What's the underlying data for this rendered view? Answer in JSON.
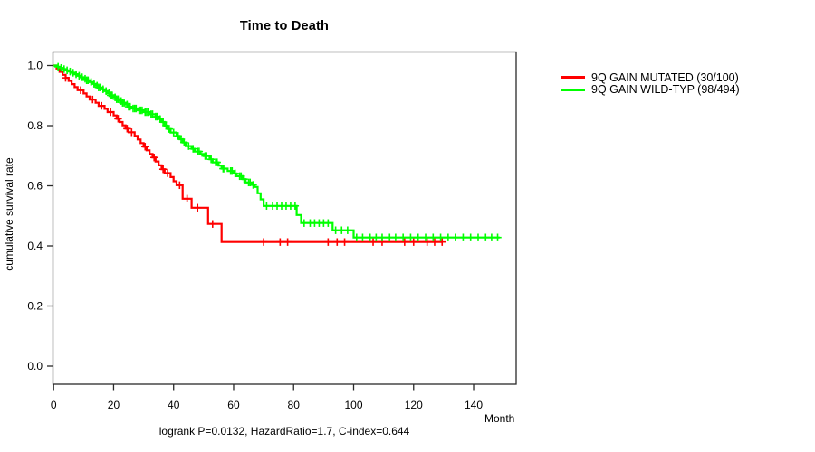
{
  "chart_data": {
    "type": "line",
    "subtype": "kaplan-meier-step-curves",
    "title": "Time to Death",
    "xlabel": "Month",
    "ylabel": "cumulative survival rate",
    "annotation": "logrank P=0.0132, HazardRatio=1.7, C-index=0.644",
    "x_ticks": [
      0,
      20,
      40,
      60,
      80,
      100,
      120,
      140
    ],
    "y_ticks": [
      0.0,
      0.2,
      0.4,
      0.6,
      0.8,
      1.0
    ],
    "xlim": [
      0,
      154
    ],
    "ylim": [
      0,
      1
    ],
    "grid": false,
    "legend_position": "outside-right-top",
    "axis_color": "#2a2a2a",
    "series": [
      {
        "name": "9Q GAIN MUTATED (30/100)",
        "color": "#ff0000",
        "end_month": 129.5,
        "steps": [
          [
            0,
            1.0
          ],
          [
            1,
            0.99
          ],
          [
            2,
            0.979
          ],
          [
            3,
            0.969
          ],
          [
            4,
            0.959
          ],
          [
            5,
            0.949
          ],
          [
            6,
            0.938
          ],
          [
            7,
            0.928
          ],
          [
            8,
            0.918
          ],
          [
            10,
            0.907
          ],
          [
            11,
            0.897
          ],
          [
            12,
            0.887
          ],
          [
            14,
            0.876
          ],
          [
            15,
            0.866
          ],
          [
            17,
            0.856
          ],
          [
            18,
            0.845
          ],
          [
            20,
            0.834
          ],
          [
            21,
            0.823
          ],
          [
            22,
            0.812
          ],
          [
            23,
            0.801
          ],
          [
            24,
            0.79
          ],
          [
            25,
            0.778
          ],
          [
            27,
            0.766
          ],
          [
            28,
            0.754
          ],
          [
            29,
            0.742
          ],
          [
            30,
            0.73
          ],
          [
            31,
            0.718
          ],
          [
            32,
            0.706
          ],
          [
            33,
            0.694
          ],
          [
            34,
            0.681
          ],
          [
            35,
            0.668
          ],
          [
            36,
            0.655
          ],
          [
            37,
            0.642
          ],
          [
            39,
            0.629
          ],
          [
            40,
            0.615
          ],
          [
            41,
            0.602
          ],
          [
            43,
            0.557
          ],
          [
            46,
            0.527
          ],
          [
            51.5,
            0.473
          ],
          [
            56,
            0.413
          ]
        ],
        "censor_months": [
          4,
          9,
          13,
          16,
          19,
          21.5,
          24.5,
          26,
          30.5,
          33.5,
          36.5,
          38,
          42,
          44.5,
          48,
          53,
          70,
          75.5,
          78,
          91.5,
          94.5,
          97,
          106.5,
          109.5,
          117,
          120,
          124.5,
          127,
          129.5
        ]
      },
      {
        "name": "9Q GAIN WILD-TYP (98/494)",
        "color": "#00ff00",
        "end_month": 148.7,
        "steps": [
          [
            0,
            1.0
          ],
          [
            1,
            0.996
          ],
          [
            2,
            0.992
          ],
          [
            3,
            0.988
          ],
          [
            4,
            0.984
          ],
          [
            5,
            0.98
          ],
          [
            6,
            0.976
          ],
          [
            7,
            0.971
          ],
          [
            8,
            0.966
          ],
          [
            9,
            0.961
          ],
          [
            10,
            0.956
          ],
          [
            11,
            0.951
          ],
          [
            12,
            0.945
          ],
          [
            13,
            0.939
          ],
          [
            14,
            0.933
          ],
          [
            15,
            0.927
          ],
          [
            16,
            0.921
          ],
          [
            17,
            0.915
          ],
          [
            18,
            0.908
          ],
          [
            19,
            0.901
          ],
          [
            20,
            0.894
          ],
          [
            21,
            0.888
          ],
          [
            22,
            0.882
          ],
          [
            23,
            0.876
          ],
          [
            24,
            0.87
          ],
          [
            25,
            0.863
          ],
          [
            26,
            0.857
          ],
          [
            28,
            0.851
          ],
          [
            30,
            0.845
          ],
          [
            32,
            0.838
          ],
          [
            34,
            0.83
          ],
          [
            35,
            0.822
          ],
          [
            36,
            0.812
          ],
          [
            37,
            0.8
          ],
          [
            38,
            0.789
          ],
          [
            39,
            0.777
          ],
          [
            41,
            0.766
          ],
          [
            42,
            0.755
          ],
          [
            43,
            0.744
          ],
          [
            44,
            0.732
          ],
          [
            46,
            0.723
          ],
          [
            47,
            0.714
          ],
          [
            49,
            0.706
          ],
          [
            50,
            0.699
          ],
          [
            52,
            0.688
          ],
          [
            53,
            0.678
          ],
          [
            55,
            0.667
          ],
          [
            56,
            0.657
          ],
          [
            58,
            0.649
          ],
          [
            60,
            0.641
          ],
          [
            61,
            0.632
          ],
          [
            63,
            0.622
          ],
          [
            64,
            0.611
          ],
          [
            66,
            0.603
          ],
          [
            67,
            0.596
          ],
          [
            68,
            0.575
          ],
          [
            69,
            0.555
          ],
          [
            70,
            0.533
          ],
          [
            81,
            0.503
          ],
          [
            82.5,
            0.476
          ],
          [
            93,
            0.452
          ],
          [
            100,
            0.428
          ]
        ],
        "censor_months": [
          1.5,
          2.5,
          3.5,
          4.5,
          5.5,
          6.5,
          7.5,
          8.5,
          9.5,
          10.5,
          11,
          11.5,
          12.5,
          13.5,
          14.5,
          15,
          15.5,
          16.5,
          17.5,
          18.5,
          19,
          19.5,
          20.5,
          21,
          21.5,
          22.5,
          23,
          23.5,
          24.5,
          25,
          25.5,
          26.5,
          27,
          27.5,
          28.5,
          29,
          29.5,
          30.5,
          31,
          31.5,
          32.5,
          33,
          34,
          34.5,
          35.5,
          36.5,
          37.5,
          38.5,
          40,
          41.5,
          42.5,
          43.5,
          45,
          46.5,
          48,
          48.5,
          50.5,
          51,
          52.5,
          54,
          54.5,
          56.5,
          57,
          59,
          59.5,
          60.5,
          62,
          62.5,
          63.5,
          65,
          65.5,
          66.5,
          71,
          73,
          74.5,
          76,
          77.5,
          79,
          80.5,
          83.5,
          85.5,
          87,
          88.5,
          90,
          91.5,
          94,
          96,
          98,
          101,
          103,
          105.5,
          107.5,
          109.5,
          112,
          114,
          116.5,
          119,
          121.5,
          124,
          126.5,
          129,
          131.5,
          134,
          136.5,
          139,
          141.5,
          144,
          146,
          148
        ]
      }
    ]
  }
}
